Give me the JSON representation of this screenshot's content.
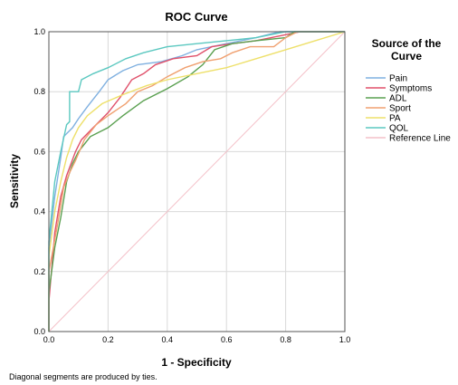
{
  "chart_data": {
    "type": "line",
    "title": "ROC Curve",
    "xlabel": "1 - Specificity",
    "ylabel": "Sensitivity",
    "xlim": [
      0,
      1
    ],
    "ylim": [
      0,
      1
    ],
    "x_ticks": [
      "0.0",
      "0.2",
      "0.4",
      "0.6",
      "0.8",
      "1.0"
    ],
    "y_ticks": [
      "0.0",
      "0.2",
      "0.4",
      "0.6",
      "0.8",
      "1.0"
    ],
    "grid": true,
    "legend": {
      "title_line1": "Source of the",
      "title_line2": "Curve",
      "placement": "right"
    },
    "footnote": "Diagonal segments are produced by ties.",
    "series": [
      {
        "name": "Pain",
        "color": "#7fb0e0",
        "points": [
          [
            0,
            0
          ],
          [
            0,
            0.28
          ],
          [
            0.02,
            0.45
          ],
          [
            0.04,
            0.58
          ],
          [
            0.05,
            0.65
          ],
          [
            0.08,
            0.68
          ],
          [
            0.1,
            0.71
          ],
          [
            0.13,
            0.75
          ],
          [
            0.17,
            0.8
          ],
          [
            0.2,
            0.84
          ],
          [
            0.25,
            0.87
          ],
          [
            0.3,
            0.89
          ],
          [
            0.38,
            0.9
          ],
          [
            0.45,
            0.92
          ],
          [
            0.5,
            0.94
          ],
          [
            0.6,
            0.96
          ],
          [
            0.7,
            0.98
          ],
          [
            0.78,
            1.0
          ],
          [
            1,
            1
          ]
        ]
      },
      {
        "name": "Symptoms",
        "color": "#e0506a",
        "points": [
          [
            0,
            0
          ],
          [
            0,
            0.1
          ],
          [
            0.02,
            0.33
          ],
          [
            0.04,
            0.45
          ],
          [
            0.06,
            0.52
          ],
          [
            0.09,
            0.6
          ],
          [
            0.11,
            0.64
          ],
          [
            0.15,
            0.68
          ],
          [
            0.2,
            0.73
          ],
          [
            0.24,
            0.78
          ],
          [
            0.28,
            0.84
          ],
          [
            0.32,
            0.86
          ],
          [
            0.36,
            0.89
          ],
          [
            0.42,
            0.91
          ],
          [
            0.5,
            0.92
          ],
          [
            0.55,
            0.95
          ],
          [
            0.62,
            0.96
          ],
          [
            0.7,
            0.97
          ],
          [
            0.8,
            0.99
          ],
          [
            0.85,
            1.0
          ],
          [
            1,
            1
          ]
        ]
      },
      {
        "name": "ADL",
        "color": "#5aa050",
        "points": [
          [
            0,
            0
          ],
          [
            0,
            0.13
          ],
          [
            0.02,
            0.28
          ],
          [
            0.04,
            0.38
          ],
          [
            0.06,
            0.5
          ],
          [
            0.08,
            0.56
          ],
          [
            0.1,
            0.6
          ],
          [
            0.14,
            0.65
          ],
          [
            0.2,
            0.68
          ],
          [
            0.25,
            0.72
          ],
          [
            0.32,
            0.77
          ],
          [
            0.4,
            0.81
          ],
          [
            0.47,
            0.85
          ],
          [
            0.52,
            0.89
          ],
          [
            0.56,
            0.94
          ],
          [
            0.62,
            0.96
          ],
          [
            0.7,
            0.97
          ],
          [
            0.8,
            0.98
          ],
          [
            0.83,
            1.0
          ],
          [
            1,
            1
          ]
        ]
      },
      {
        "name": "Sport",
        "color": "#f0a070",
        "points": [
          [
            0,
            0
          ],
          [
            0,
            0.2
          ],
          [
            0.03,
            0.36
          ],
          [
            0.05,
            0.48
          ],
          [
            0.07,
            0.53
          ],
          [
            0.09,
            0.57
          ],
          [
            0.12,
            0.64
          ],
          [
            0.16,
            0.69
          ],
          [
            0.2,
            0.72
          ],
          [
            0.26,
            0.76
          ],
          [
            0.3,
            0.8
          ],
          [
            0.35,
            0.82
          ],
          [
            0.4,
            0.85
          ],
          [
            0.46,
            0.88
          ],
          [
            0.52,
            0.9
          ],
          [
            0.58,
            0.91
          ],
          [
            0.62,
            0.93
          ],
          [
            0.68,
            0.95
          ],
          [
            0.76,
            0.95
          ],
          [
            0.8,
            0.98
          ],
          [
            0.84,
            1.0
          ],
          [
            1,
            1
          ]
        ]
      },
      {
        "name": "PA",
        "color": "#eee06a",
        "points": [
          [
            0,
            0
          ],
          [
            0,
            0.25
          ],
          [
            0.02,
            0.4
          ],
          [
            0.04,
            0.5
          ],
          [
            0.06,
            0.58
          ],
          [
            0.08,
            0.64
          ],
          [
            0.1,
            0.68
          ],
          [
            0.13,
            0.72
          ],
          [
            0.18,
            0.76
          ],
          [
            0.25,
            0.79
          ],
          [
            0.33,
            0.82
          ],
          [
            0.4,
            0.84
          ],
          [
            0.5,
            0.86
          ],
          [
            0.6,
            0.88
          ],
          [
            0.7,
            0.91
          ],
          [
            0.8,
            0.94
          ],
          [
            0.9,
            0.97
          ],
          [
            1,
            1
          ]
        ]
      },
      {
        "name": "QOL",
        "color": "#5bc8c0",
        "points": [
          [
            0,
            0
          ],
          [
            0,
            0.3
          ],
          [
            0.02,
            0.5
          ],
          [
            0.04,
            0.6
          ],
          [
            0.06,
            0.69
          ],
          [
            0.07,
            0.7
          ],
          [
            0.07,
            0.8
          ],
          [
            0.1,
            0.8
          ],
          [
            0.11,
            0.84
          ],
          [
            0.15,
            0.86
          ],
          [
            0.2,
            0.88
          ],
          [
            0.26,
            0.91
          ],
          [
            0.32,
            0.93
          ],
          [
            0.4,
            0.95
          ],
          [
            0.5,
            0.96
          ],
          [
            0.6,
            0.97
          ],
          [
            0.7,
            0.98
          ],
          [
            0.8,
            1.0
          ],
          [
            1,
            1
          ]
        ]
      },
      {
        "name": "Reference Line",
        "color": "#f4c0c8",
        "points": [
          [
            0,
            0
          ],
          [
            1,
            1
          ]
        ]
      }
    ]
  }
}
